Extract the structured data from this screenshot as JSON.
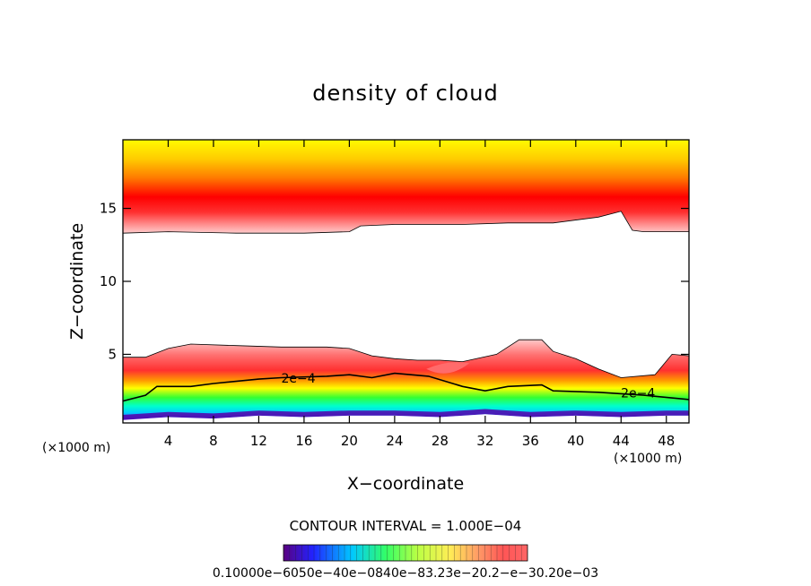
{
  "chart_data": {
    "type": "heatmap",
    "title": "density of cloud",
    "xlabel": "X−coordinate",
    "ylabel": "Z−coordinate",
    "x_unit_left": "(×1000 m)",
    "x_unit_right": "(×1000 m)",
    "xlim": [
      0,
      50
    ],
    "ylim": [
      0.3,
      19.7
    ],
    "x_ticks": [
      4,
      8,
      12,
      16,
      20,
      24,
      28,
      32,
      36,
      40,
      44,
      48
    ],
    "y_ticks": [
      5,
      10,
      15
    ],
    "x_tick_labels": [
      "4",
      "8",
      "12",
      "16",
      "20",
      "24",
      "28",
      "32",
      "36",
      "40",
      "44",
      "48"
    ],
    "y_tick_labels": [
      "5",
      "10",
      "15"
    ],
    "contour_interval_text": "CONTOUR INTERVAL = 1.000E−04",
    "contour_labels": [
      {
        "text": "2e−4",
        "x": 15.5,
        "z": 3.3
      },
      {
        "text": "2e−4",
        "x": 45.5,
        "z": 2.3
      }
    ],
    "colorbar_labels_text": "0.10000e−6050e−40e−0840e−83.23e−20.2−e−30.20e−03",
    "colors": {
      "upper_top": "#ffff00",
      "upper_core": "#ff0000",
      "upper_edge": "#ffc8c8",
      "lower_edge": "#ffc8c8",
      "lower_red": "#ff3c3c",
      "lower_orange": "#ff9a00",
      "lower_yellow": "#ffff00",
      "lower_green": "#33ff33",
      "lower_cyan": "#00ffff",
      "lower_blue": "#3355ff",
      "lower_purple": "#6600cc"
    },
    "upper_layer_bottom": [
      [
        0,
        13.3
      ],
      [
        4,
        13.4
      ],
      [
        10,
        13.3
      ],
      [
        16,
        13.3
      ],
      [
        20,
        13.4
      ],
      [
        21,
        13.8
      ],
      [
        24,
        13.9
      ],
      [
        30,
        13.9
      ],
      [
        34,
        14.0
      ],
      [
        38,
        14.0
      ],
      [
        42,
        14.4
      ],
      [
        44,
        14.8
      ],
      [
        45,
        13.5
      ],
      [
        46,
        13.4
      ],
      [
        50,
        13.4
      ]
    ],
    "upper_layer_core": [
      [
        0,
        15.5
      ],
      [
        10,
        15.6
      ],
      [
        20,
        16.0
      ],
      [
        30,
        16.2
      ],
      [
        38,
        15.9
      ],
      [
        44,
        16.4
      ],
      [
        50,
        15.8
      ]
    ],
    "lower_layer_top": [
      [
        0,
        4.8
      ],
      [
        2,
        4.8
      ],
      [
        4,
        5.4
      ],
      [
        6,
        5.7
      ],
      [
        10,
        5.6
      ],
      [
        14,
        5.5
      ],
      [
        18,
        5.5
      ],
      [
        20,
        5.4
      ],
      [
        22,
        4.9
      ],
      [
        24,
        4.7
      ],
      [
        26,
        4.6
      ],
      [
        28,
        4.6
      ],
      [
        30,
        4.5
      ],
      [
        33,
        5.0
      ],
      [
        35,
        6.0
      ],
      [
        37,
        6.0
      ],
      [
        38,
        5.2
      ],
      [
        40,
        4.7
      ],
      [
        42,
        4.0
      ],
      [
        44,
        3.4
      ],
      [
        47,
        3.6
      ],
      [
        48.5,
        5.0
      ],
      [
        50,
        4.9
      ]
    ],
    "lower_layer_contour_2e4": [
      [
        0,
        1.8
      ],
      [
        2,
        2.2
      ],
      [
        3,
        2.8
      ],
      [
        6,
        2.8
      ],
      [
        8,
        3.0
      ],
      [
        12,
        3.3
      ],
      [
        14,
        3.4
      ],
      [
        18,
        3.5
      ],
      [
        20,
        3.6
      ],
      [
        22,
        3.4
      ],
      [
        24,
        3.7
      ],
      [
        27,
        3.5
      ],
      [
        30,
        2.8
      ],
      [
        32,
        2.5
      ],
      [
        34,
        2.8
      ],
      [
        37,
        2.9
      ],
      [
        38,
        2.5
      ],
      [
        42,
        2.4
      ],
      [
        46,
        2.2
      ],
      [
        50,
        1.9
      ]
    ],
    "lower_layer_bottom": [
      [
        0,
        0.5
      ],
      [
        4,
        0.7
      ],
      [
        8,
        0.6
      ],
      [
        12,
        0.8
      ],
      [
        16,
        0.7
      ],
      [
        20,
        0.8
      ],
      [
        24,
        0.8
      ],
      [
        28,
        0.7
      ],
      [
        32,
        0.9
      ],
      [
        36,
        0.7
      ],
      [
        40,
        0.8
      ],
      [
        44,
        0.7
      ],
      [
        48,
        0.8
      ],
      [
        50,
        0.8
      ]
    ],
    "floating_cloud": {
      "x_range": [
        26.8,
        30.6
      ],
      "z_top": 4.4,
      "z_bottom": 3.6
    }
  }
}
